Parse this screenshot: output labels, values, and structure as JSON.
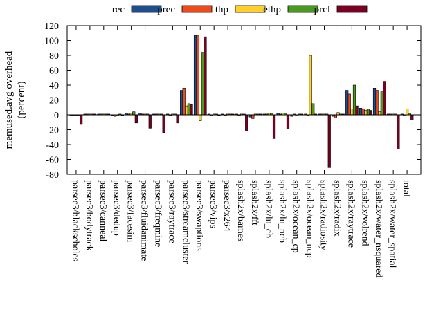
{
  "chart_data": {
    "type": "bar",
    "ylabel_line1": "memused.avg overhead",
    "ylabel_line2": "(percent)",
    "ylim": [
      -80,
      120
    ],
    "yticks": [
      120,
      100,
      80,
      60,
      40,
      20,
      0,
      -20,
      -40,
      -60,
      -80
    ],
    "grid": false,
    "legend_position": "top",
    "categories": [
      "parsec3/blackscholes",
      "parsec3/bodytrack",
      "parsec3/canneal",
      "parsec3/dedup",
      "parsec3/facesim",
      "parsec3/fluidanimate",
      "parsec3/freqmine",
      "parsec3/raytrace",
      "parsec3/streamcluster",
      "parsec3/swaptions",
      "parsec3/vips",
      "parsec3/x264",
      "splash2x/barnes",
      "splash2x/fft",
      "splash2x/lu_cb",
      "splash2x/lu_ncb",
      "splash2x/ocean_cp",
      "splash2x/ocean_ncp",
      "splash2x/radiosity",
      "splash2x/radix",
      "splash2x/raytrace",
      "splash2x/volrend",
      "splash2x/water_nsquared",
      "splash2x/water_spatial",
      "total"
    ],
    "series": [
      {
        "name": "rec",
        "color": "#1f4e8c",
        "values": [
          -1,
          1,
          1,
          -1,
          2,
          2,
          1,
          1,
          33,
          107,
          1,
          1,
          1,
          -3,
          1,
          2,
          -2,
          1,
          1,
          -2,
          33,
          9,
          36,
          1,
          1
        ]
      },
      {
        "name": "prec",
        "color": "#f04a1a",
        "values": [
          -1,
          1,
          1,
          -2,
          1,
          1,
          1,
          -1,
          36,
          107,
          -1,
          -1,
          -1,
          -5,
          1,
          1,
          1,
          -1,
          1,
          -4,
          28,
          8,
          33,
          1,
          -1
        ]
      },
      {
        "name": "thp",
        "color": "#ffd02a",
        "values": [
          0,
          1,
          1,
          -1,
          2,
          1,
          1,
          1,
          12,
          -8,
          1,
          1,
          1,
          1,
          2,
          2,
          -1,
          80,
          1,
          3,
          8,
          6,
          4,
          1,
          8
        ]
      },
      {
        "name": "ethp",
        "color": "#4a9a1e",
        "values": [
          -1,
          1,
          1,
          1,
          4,
          1,
          1,
          1,
          15,
          84,
          1,
          1,
          1,
          1,
          2,
          2,
          1,
          15,
          1,
          1,
          40,
          8,
          31,
          1,
          2
        ]
      },
      {
        "name": "prcl",
        "color": "#7a0022",
        "values": [
          -13,
          1,
          1,
          -1,
          -11,
          -18,
          -24,
          -11,
          14,
          105,
          -1,
          1,
          -22,
          1,
          -32,
          -19,
          1,
          1,
          -71,
          1,
          12,
          6,
          45,
          -46,
          -7
        ]
      }
    ]
  }
}
